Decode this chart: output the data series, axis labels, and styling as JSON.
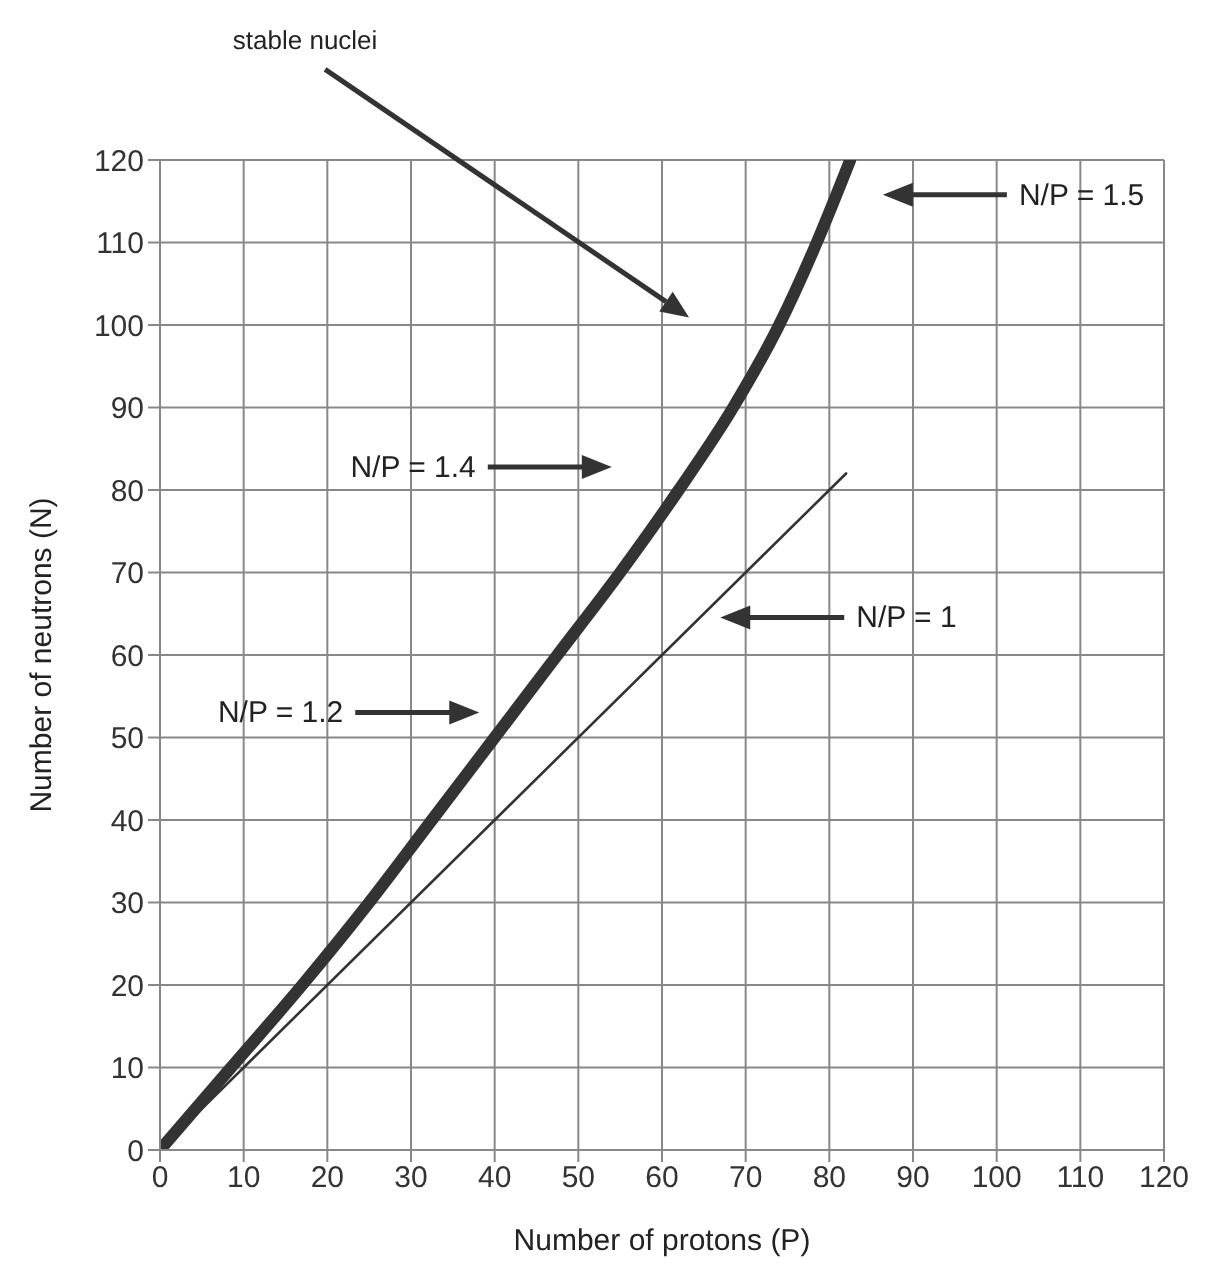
{
  "chart_data": {
    "type": "line",
    "xlabel": "Number of protons (P)",
    "ylabel": "Number of neutrons (N)",
    "xlim": [
      0,
      120
    ],
    "xticks": [
      0,
      10,
      20,
      30,
      40,
      50,
      60,
      70,
      80,
      90,
      100,
      110,
      120
    ],
    "ylim": [
      0,
      120
    ],
    "yticks": [
      0,
      10,
      20,
      30,
      40,
      50,
      60,
      70,
      80,
      90,
      100,
      110,
      120
    ],
    "grid": true,
    "line_style": "solid",
    "series": [
      {
        "type": "line",
        "color": "#333333",
        "x": [
          0,
          8.5,
          17,
          25,
          32.5,
          40,
          47.5,
          55,
          62,
          68.5,
          74,
          78.5,
          82.5
        ],
        "values": [
          0,
          10,
          20,
          30,
          40,
          50,
          60,
          70,
          80,
          90,
          100,
          110,
          120
        ]
      },
      {
        "type": "line",
        "color": "#333333",
        "x": [
          0,
          82
        ],
        "values": [
          0,
          82
        ]
      }
    ],
    "annotations": [
      "stable nuclei",
      "N/P = 1.5",
      "N/P = 1.4",
      "N/P = 1",
      "N/P = 1.2"
    ]
  }
}
